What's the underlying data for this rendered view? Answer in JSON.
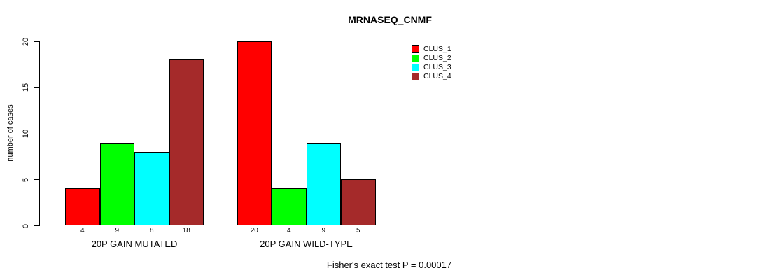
{
  "chart_data": {
    "type": "bar",
    "title": "MRNASEQ_CNMF",
    "ylabel": "number of cases",
    "xlabel": "",
    "ylim": [
      0,
      20
    ],
    "yticks": [
      0,
      5,
      10,
      15,
      20
    ],
    "grid": false,
    "legend_position": "top-right",
    "categories": [
      "20P GAIN MUTATED",
      "20P GAIN WILD-TYPE"
    ],
    "series": [
      {
        "name": "CLUS_1",
        "color": "#FF0000",
        "values": [
          4,
          20
        ]
      },
      {
        "name": "CLUS_2",
        "color": "#00FF00",
        "values": [
          9,
          4
        ]
      },
      {
        "name": "CLUS_3",
        "color": "#00FFFF",
        "values": [
          8,
          9
        ]
      },
      {
        "name": "CLUS_4",
        "color": "#A52A2A",
        "values": [
          18,
          5
        ]
      }
    ],
    "bar_value_labels": {
      "20P GAIN MUTATED": [
        4,
        9,
        8,
        18
      ],
      "20P GAIN WILD-TYPE": [
        20,
        4,
        9,
        5
      ]
    },
    "annotation": "Fisher's exact test P = 0.00017",
    "axis_color": "#000000",
    "bar_border_color": "#000000"
  }
}
